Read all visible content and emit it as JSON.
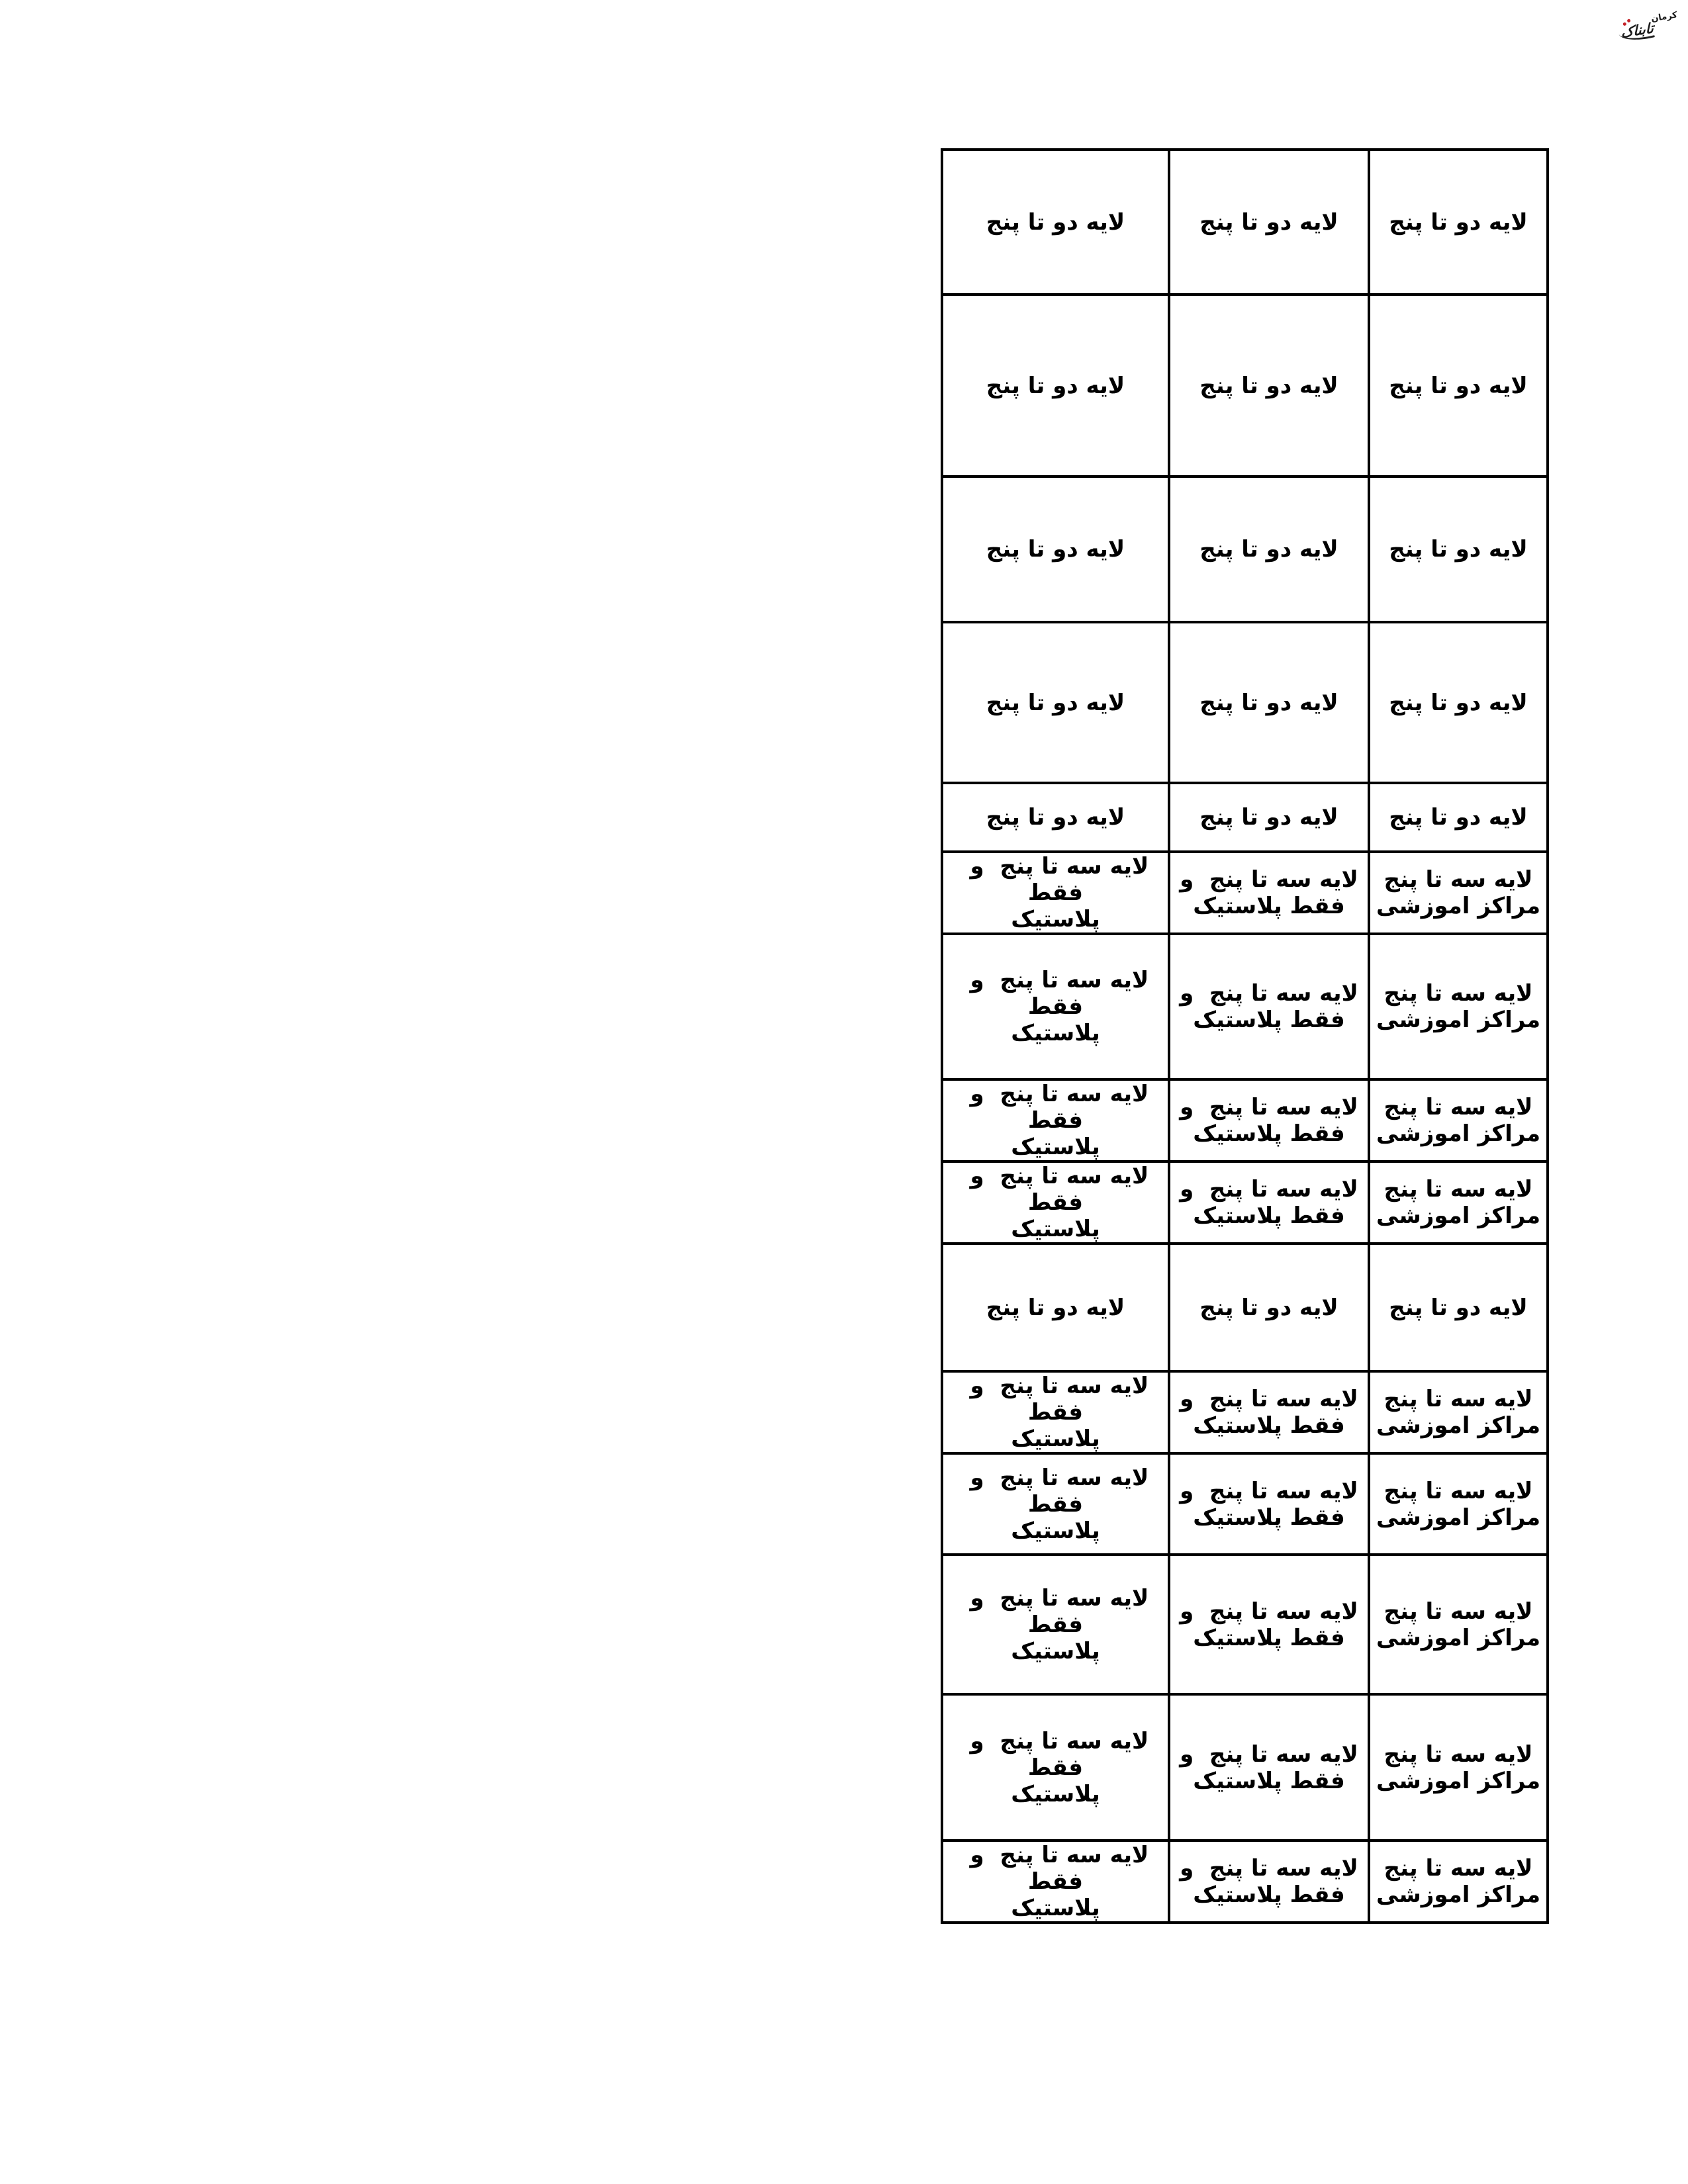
{
  "watermark": {
    "kerman": "کرمان",
    "tabnak": "تابناک",
    "text_color": "#1b1b1b",
    "accent_color": "#c42127"
  },
  "table": {
    "border_color": "#000000",
    "text_color": "#000000",
    "background": "#ffffff",
    "cell_texts": {
      "duo": [
        [
          "لایه دو تا پنج"
        ],
        [
          "لایه دو تا پنج"
        ],
        [
          "لایه دو تا پنج"
        ]
      ],
      "seh": [
        [
          "لایه سه تا پنج  و  فقط",
          "پلاستیک"
        ],
        [
          "لایه سه تا پنج  و",
          "فقط پلاستیک"
        ],
        [
          "لایه سه تا پنج",
          "مراکز اموزشی"
        ]
      ]
    },
    "rows": [
      "duo",
      "duo",
      "duo",
      "duo",
      "duo",
      "seh",
      "seh",
      "seh",
      "seh",
      "duo",
      "seh",
      "seh",
      "seh",
      "seh",
      "seh"
    ]
  }
}
